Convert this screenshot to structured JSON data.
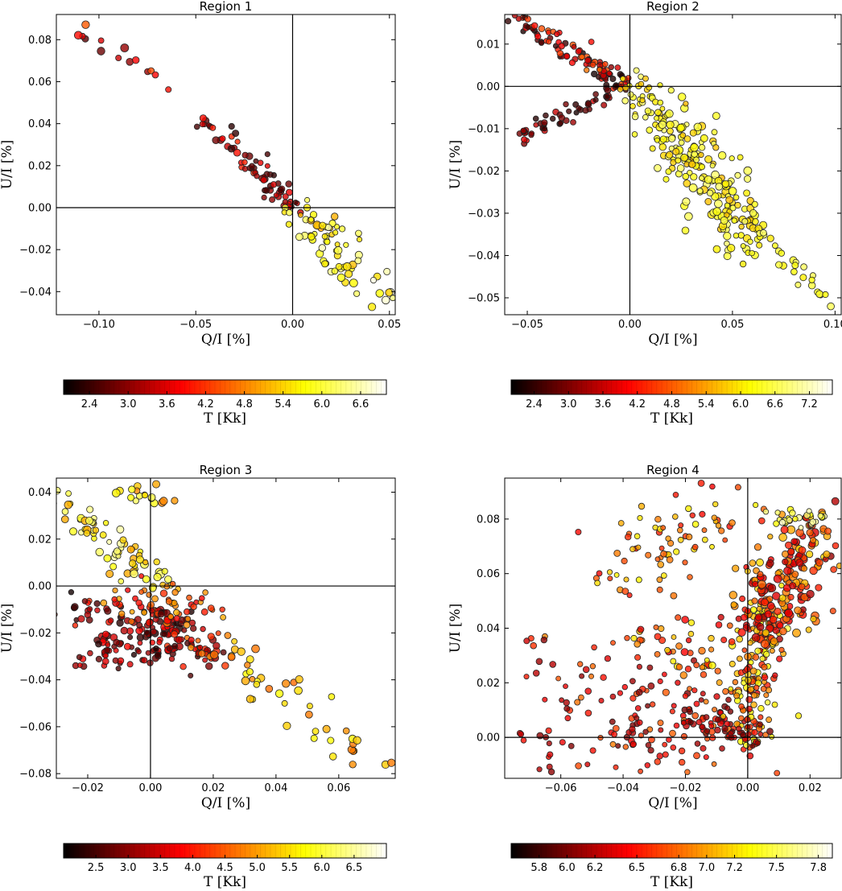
{
  "chart_data": [
    {
      "type": "scatter",
      "title": "Region 1",
      "xlabel": "Q/I [%]",
      "ylabel": "U/I [%]",
      "xlim": [
        -0.122,
        0.053
      ],
      "ylim": [
        -0.051,
        0.092
      ],
      "xticks": [
        -0.1,
        -0.05,
        0.0,
        0.05
      ],
      "xtick_labels": [
        "−0.10",
        "−0.05",
        "0.00",
        "0.05"
      ],
      "yticks": [
        -0.04,
        -0.02,
        0.0,
        0.02,
        0.04,
        0.06,
        0.08
      ],
      "ytick_labels": [
        "−0.04",
        "−0.02",
        "0.00",
        "0.02",
        "0.04",
        "0.06",
        "0.08"
      ],
      "color_range": [
        2.0,
        7.0
      ],
      "colorbar": {
        "label": "T [Kk]",
        "min": 2.0,
        "max": 7.0,
        "ticks": [
          2.4,
          3.0,
          3.6,
          4.2,
          4.8,
          5.4,
          6.0,
          6.6
        ],
        "tick_labels": [
          "2.4",
          "3.0",
          "3.6",
          "4.2",
          "4.8",
          "5.4",
          "6.0",
          "6.6"
        ]
      },
      "segments": [
        {
          "from": [
            -0.112,
            0.085
          ],
          "to": [
            -0.06,
            0.055
          ],
          "n": 14,
          "sigma": 0.0025,
          "temp": [
            2.5,
            4.5
          ],
          "size": [
            5,
            8
          ]
        },
        {
          "from": [
            -0.05,
            0.045
          ],
          "to": [
            -0.02,
            0.02
          ],
          "n": 30,
          "sigma": 0.003,
          "temp": [
            2.3,
            4.2
          ],
          "size": [
            4,
            7
          ]
        },
        {
          "from": [
            -0.02,
            0.02
          ],
          "to": [
            0.0,
            0.0
          ],
          "n": 40,
          "sigma": 0.0025,
          "temp": [
            2.2,
            3.8
          ],
          "size": [
            4,
            6
          ]
        },
        {
          "from": [
            0.0,
            0.0
          ],
          "to": [
            0.03,
            -0.015
          ],
          "n": 32,
          "sigma": 0.004,
          "temp": [
            5.0,
            6.2
          ],
          "size": [
            4,
            7
          ]
        },
        {
          "from": [
            0.01,
            -0.01
          ],
          "to": [
            0.05,
            -0.045
          ],
          "n": 42,
          "sigma": 0.0065,
          "temp": [
            5.2,
            6.9
          ],
          "size": [
            5,
            8
          ]
        }
      ]
    },
    {
      "type": "scatter",
      "title": "Region 2",
      "xlabel": "Q/I [%]",
      "ylabel": "U/I [%]",
      "xlim": [
        -0.061,
        0.103
      ],
      "ylim": [
        -0.054,
        0.017
      ],
      "xticks": [
        -0.05,
        0.0,
        0.05,
        0.1
      ],
      "xtick_labels": [
        "−0.05",
        "0.00",
        "0.05",
        "0.10"
      ],
      "yticks": [
        -0.05,
        -0.04,
        -0.03,
        -0.02,
        -0.01,
        0.0,
        0.01
      ],
      "ytick_labels": [
        "−0.05",
        "−0.04",
        "−0.03",
        "−0.02",
        "−0.01",
        "0.00",
        "0.01"
      ],
      "color_range": [
        2.0,
        7.6
      ],
      "colorbar": {
        "label": "T [Kk]",
        "min": 2.0,
        "max": 7.6,
        "ticks": [
          2.4,
          3.0,
          3.6,
          4.2,
          4.8,
          5.4,
          6.0,
          6.6,
          7.2
        ],
        "tick_labels": [
          "2.4",
          "3.0",
          "3.6",
          "4.2",
          "4.8",
          "5.4",
          "6.0",
          "6.6",
          "7.2"
        ]
      },
      "segments": [
        {
          "from": [
            -0.057,
            0.016
          ],
          "to": [
            -0.003,
            0.001
          ],
          "n": 70,
          "sigma": 0.0015,
          "temp": [
            2.1,
            4.8
          ],
          "size": [
            4,
            6
          ]
        },
        {
          "from": [
            -0.053,
            -0.012
          ],
          "to": [
            -0.003,
            0.0
          ],
          "n": 55,
          "sigma": 0.0012,
          "temp": [
            2.1,
            3.8
          ],
          "size": [
            4,
            6
          ]
        },
        {
          "from": [
            -0.042,
            0.013
          ],
          "to": [
            -0.01,
            0.003
          ],
          "n": 22,
          "sigma": 0.0018,
          "temp": [
            3.6,
            5.0
          ],
          "size": [
            4,
            6
          ]
        },
        {
          "from": [
            0.0,
            0.0
          ],
          "to": [
            0.02,
            -0.012
          ],
          "n": 50,
          "sigma": 0.0035,
          "temp": [
            5.6,
            6.8
          ],
          "size": [
            4,
            6
          ]
        },
        {
          "from": [
            0.015,
            -0.008
          ],
          "to": [
            0.06,
            -0.035
          ],
          "n": 180,
          "sigma": 0.0055,
          "temp": [
            5.6,
            6.8
          ],
          "size": [
            4,
            8
          ]
        },
        {
          "from": [
            0.055,
            -0.032
          ],
          "to": [
            0.097,
            -0.05
          ],
          "n": 30,
          "sigma": 0.0015,
          "temp": [
            5.8,
            6.8
          ],
          "size": [
            5,
            7
          ]
        }
      ]
    },
    {
      "type": "scatter",
      "title": "Region 3",
      "xlabel": "Q/I [%]",
      "ylabel": "U/I [%]",
      "xlim": [
        -0.03,
        0.078
      ],
      "ylim": [
        -0.082,
        0.046
      ],
      "xticks": [
        -0.02,
        0.0,
        0.02,
        0.04,
        0.06
      ],
      "xtick_labels": [
        "−0.02",
        "0.00",
        "0.02",
        "0.04",
        "0.06"
      ],
      "yticks": [
        -0.08,
        -0.06,
        -0.04,
        -0.02,
        0.0,
        0.02,
        0.04
      ],
      "ytick_labels": [
        "−0.08",
        "−0.06",
        "−0.04",
        "−0.02",
        "0.00",
        "0.02",
        "0.04"
      ],
      "color_range": [
        2.0,
        7.0
      ],
      "colorbar": {
        "label": "T [Kk]",
        "min": 2.0,
        "max": 7.0,
        "ticks": [
          2.5,
          3.0,
          3.5,
          4.0,
          4.5,
          5.0,
          5.5,
          6.0,
          6.5
        ],
        "tick_labels": [
          "2.5",
          "3.0",
          "3.5",
          "4.0",
          "4.5",
          "5.0",
          "5.5",
          "6.0",
          "6.5"
        ]
      },
      "segments": [
        {
          "from": [
            -0.028,
            0.036
          ],
          "to": [
            0.004,
            0.0
          ],
          "n": 70,
          "sigma": 0.0035,
          "temp": [
            5.0,
            6.6
          ],
          "size": [
            4,
            8
          ]
        },
        {
          "from": [
            -0.012,
            0.043
          ],
          "to": [
            0.006,
            0.036
          ],
          "n": 18,
          "sigma": 0.002,
          "temp": [
            4.8,
            6.3
          ],
          "size": [
            5,
            8
          ]
        },
        {
          "from": [
            -0.026,
            -0.007
          ],
          "to": [
            0.008,
            -0.03
          ],
          "n": 70,
          "sigma": 0.005,
          "temp": [
            2.1,
            4.2
          ],
          "size": [
            4,
            7
          ]
        },
        {
          "from": [
            -0.022,
            -0.03
          ],
          "to": [
            0.012,
            -0.022
          ],
          "n": 50,
          "sigma": 0.004,
          "temp": [
            2.1,
            3.8
          ],
          "size": [
            4,
            7
          ]
        },
        {
          "from": [
            0.0,
            -0.01
          ],
          "to": [
            0.02,
            -0.03
          ],
          "n": 90,
          "sigma": 0.0035,
          "temp": [
            2.2,
            5.0
          ],
          "size": [
            4,
            7
          ]
        },
        {
          "from": [
            -0.01,
            -0.004
          ],
          "to": [
            0.02,
            -0.01
          ],
          "n": 40,
          "sigma": 0.004,
          "temp": [
            3.5,
            5.2
          ],
          "size": [
            4,
            6
          ]
        },
        {
          "from": [
            0.02,
            -0.025
          ],
          "to": [
            0.071,
            -0.075
          ],
          "n": 45,
          "sigma": 0.004,
          "temp": [
            4.6,
            5.9
          ],
          "size": [
            5,
            8
          ]
        }
      ]
    },
    {
      "type": "scatter",
      "title": "Region 4",
      "xlabel": "Q/I [%]",
      "ylabel": "U/I [%]",
      "xlim": [
        -0.078,
        0.03
      ],
      "ylim": [
        -0.015,
        0.095
      ],
      "xticks": [
        -0.06,
        -0.04,
        -0.02,
        0.0,
        0.02
      ],
      "xtick_labels": [
        "−0.06",
        "−0.04",
        "−0.02",
        "0.00",
        "0.02"
      ],
      "yticks": [
        0.0,
        0.02,
        0.04,
        0.06,
        0.08
      ],
      "ytick_labels": [
        "0.00",
        "0.02",
        "0.04",
        "0.06",
        "0.08"
      ],
      "color_range": [
        5.6,
        7.9
      ],
      "colorbar": {
        "label": "T [Kk]",
        "min": 5.6,
        "max": 7.9,
        "ticks": [
          5.8,
          6.0,
          6.2,
          6.5,
          6.8,
          7.0,
          7.2,
          7.5,
          7.8
        ],
        "tick_labels": [
          "5.8",
          "6.0",
          "6.2",
          "6.5",
          "6.8",
          "7.0",
          "7.2",
          "7.5",
          "7.8"
        ]
      },
      "segments": [
        {
          "from": [
            -0.072,
            0.028
          ],
          "to": [
            -0.003,
            0.0
          ],
          "n": 110,
          "sigma": 0.009,
          "temp": [
            6.0,
            6.9
          ],
          "size": [
            4,
            6
          ]
        },
        {
          "from": [
            -0.07,
            -0.005
          ],
          "to": [
            -0.005,
            0.003
          ],
          "n": 60,
          "sigma": 0.006,
          "temp": [
            6.0,
            6.7
          ],
          "size": [
            4,
            6
          ]
        },
        {
          "from": [
            -0.045,
            0.06
          ],
          "to": [
            -0.002,
            0.084
          ],
          "n": 80,
          "sigma": 0.008,
          "temp": [
            6.4,
            7.3
          ],
          "size": [
            4,
            6
          ]
        },
        {
          "from": [
            -0.03,
            0.04
          ],
          "to": [
            -0.005,
            0.02
          ],
          "n": 60,
          "sigma": 0.006,
          "temp": [
            6.3,
            7.3
          ],
          "size": [
            4,
            7
          ]
        },
        {
          "from": [
            0.0,
            0.0
          ],
          "to": [
            0.005,
            0.05
          ],
          "n": 140,
          "sigma": 0.004,
          "temp": [
            6.3,
            7.5
          ],
          "size": [
            4,
            6
          ]
        },
        {
          "from": [
            0.005,
            0.04
          ],
          "to": [
            0.02,
            0.075
          ],
          "n": 200,
          "sigma": 0.006,
          "temp": [
            6.1,
            7.2
          ],
          "size": [
            5,
            8
          ]
        },
        {
          "from": [
            0.008,
            0.08
          ],
          "to": [
            0.025,
            0.08
          ],
          "n": 25,
          "sigma": 0.002,
          "temp": [
            7.2,
            7.8
          ],
          "size": [
            4,
            6
          ]
        },
        {
          "from": [
            -0.02,
            0.008
          ],
          "to": [
            0.003,
            0.0
          ],
          "n": 35,
          "sigma": 0.003,
          "temp": [
            5.9,
            6.4
          ],
          "size": [
            4,
            6
          ]
        }
      ]
    }
  ]
}
